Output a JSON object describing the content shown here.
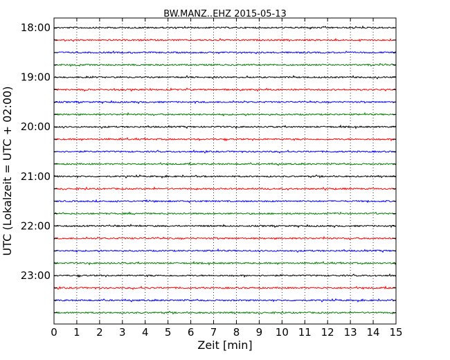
{
  "chart_data": {
    "type": "line",
    "title": "BW.MANZ..EHZ 2015-05-13",
    "xlabel": "Zeit  [min]",
    "ylabel": "UTC (Lokalzeit = UTC + 02:00)",
    "xlim": [
      0,
      15
    ],
    "xticks": [
      0,
      1,
      2,
      3,
      4,
      5,
      6,
      7,
      8,
      9,
      10,
      11,
      12,
      13,
      14,
      15
    ],
    "hour_labels": [
      "18:00",
      "19:00",
      "20:00",
      "21:00",
      "22:00",
      "23:00"
    ],
    "grid": "vertical dotted",
    "colors": [
      "#000000",
      "#ff0000",
      "#0000ff",
      "#008000"
    ],
    "series": [
      {
        "start": "18:00",
        "color": "#000000"
      },
      {
        "start": "18:15",
        "color": "#ff0000"
      },
      {
        "start": "18:30",
        "color": "#0000ff"
      },
      {
        "start": "18:45",
        "color": "#008000"
      },
      {
        "start": "19:00",
        "color": "#000000"
      },
      {
        "start": "19:15",
        "color": "#ff0000"
      },
      {
        "start": "19:30",
        "color": "#0000ff"
      },
      {
        "start": "19:45",
        "color": "#008000"
      },
      {
        "start": "20:00",
        "color": "#000000"
      },
      {
        "start": "20:15",
        "color": "#ff0000"
      },
      {
        "start": "20:30",
        "color": "#0000ff"
      },
      {
        "start": "20:45",
        "color": "#008000"
      },
      {
        "start": "21:00",
        "color": "#000000"
      },
      {
        "start": "21:15",
        "color": "#ff0000"
      },
      {
        "start": "21:30",
        "color": "#0000ff"
      },
      {
        "start": "21:45",
        "color": "#008000"
      },
      {
        "start": "22:00",
        "color": "#000000"
      },
      {
        "start": "22:15",
        "color": "#ff0000"
      },
      {
        "start": "22:30",
        "color": "#0000ff"
      },
      {
        "start": "22:45",
        "color": "#008000"
      },
      {
        "start": "23:00",
        "color": "#000000"
      },
      {
        "start": "23:15",
        "color": "#ff0000"
      },
      {
        "start": "23:30",
        "color": "#0000ff"
      },
      {
        "start": "23:45",
        "color": "#008000"
      }
    ]
  }
}
